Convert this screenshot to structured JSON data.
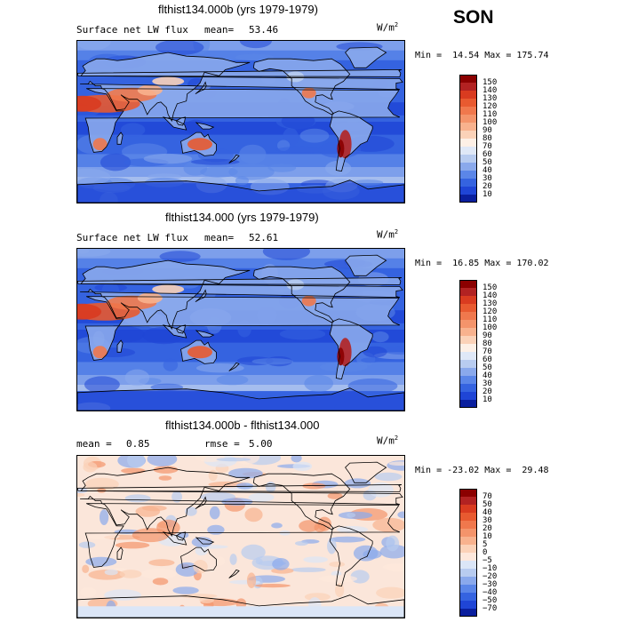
{
  "season": "SON",
  "panels": [
    {
      "title": "flthist134.000b (yrs 1979-1979)",
      "field": "Surface net LW flux",
      "stat1_label": "mean=",
      "stat1_value": "53.46",
      "stat2_label": "",
      "stat2_value": "",
      "units_base": "W/m",
      "units_exp": "2",
      "minmax": "Min =  14.54 Max = 175.74",
      "colorbar": {
        "labels": [
          "150",
          "140",
          "130",
          "120",
          "110",
          "100",
          "90",
          "80",
          "70",
          "60",
          "50",
          "40",
          "30",
          "20",
          "10"
        ],
        "colors": [
          "#8b0000",
          "#b22222",
          "#d93b20",
          "#e85a30",
          "#f0784d",
          "#f4946b",
          "#f8b28e",
          "#fbd2b8",
          "#fdf0e6",
          "#dfe8f7",
          "#b8ccf0",
          "#8aa9ec",
          "#5b86e8",
          "#3563e0",
          "#1f45d6",
          "#0a1f9e"
        ]
      },
      "map_style": "absolute"
    },
    {
      "title": "flthist134.000 (yrs 1979-1979)",
      "field": "Surface net LW flux",
      "stat1_label": "mean=",
      "stat1_value": "52.61",
      "stat2_label": "",
      "stat2_value": "",
      "units_base": "W/m",
      "units_exp": "2",
      "minmax": "Min =  16.85 Max = 170.02",
      "colorbar": {
        "labels": [
          "150",
          "140",
          "130",
          "120",
          "110",
          "100",
          "90",
          "80",
          "70",
          "60",
          "50",
          "40",
          "30",
          "20",
          "10"
        ],
        "colors": [
          "#8b0000",
          "#b22222",
          "#d93b20",
          "#e85a30",
          "#f0784d",
          "#f4946b",
          "#f8b28e",
          "#fbd2b8",
          "#fdf0e6",
          "#dfe8f7",
          "#b8ccf0",
          "#8aa9ec",
          "#5b86e8",
          "#3563e0",
          "#1f45d6",
          "#0a1f9e"
        ]
      },
      "map_style": "absolute"
    },
    {
      "title": "flthist134.000b - flthist134.000",
      "field": "",
      "stat1_label": "mean =",
      "stat1_value": "0.85",
      "stat2_label": "rmse =",
      "stat2_value": "5.00",
      "units_base": "W/m",
      "units_exp": "2",
      "minmax": "Min = -23.02 Max =  29.48",
      "colorbar": {
        "labels": [
          "70",
          "50",
          "40",
          "30",
          "20",
          "10",
          "5",
          "0",
          "−5",
          "−10",
          "−20",
          "−30",
          "−40",
          "−50",
          "−70"
        ],
        "colors": [
          "#8b0000",
          "#b22222",
          "#d93b20",
          "#e85a30",
          "#f0784d",
          "#f4946b",
          "#f8b28e",
          "#fbd2b8",
          "#fde8dc",
          "#dbe6f7",
          "#b8ccf0",
          "#8aa9ec",
          "#5b86e8",
          "#3563e0",
          "#1f45d6",
          "#0a1f9e"
        ]
      },
      "map_style": "difference"
    }
  ]
}
